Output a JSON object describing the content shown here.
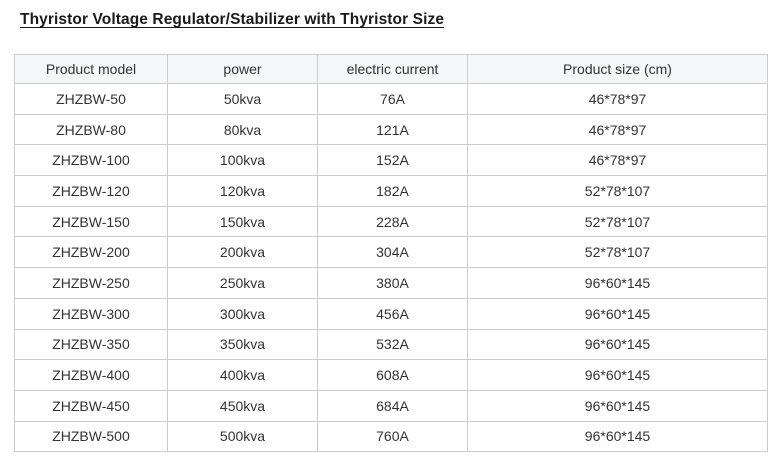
{
  "page_title": "Thyristor Voltage Regulator/Stabilizer with Thyristor Size",
  "table": {
    "columns": [
      "Product model",
      "power",
      "electric current",
      "Product size (cm)"
    ],
    "rows": [
      [
        "ZHZBW-50",
        "50kva",
        "76A",
        "46*78*97"
      ],
      [
        "ZHZBW-80",
        "80kva",
        "121A",
        "46*78*97"
      ],
      [
        "ZHZBW-100",
        "100kva",
        "152A",
        "46*78*97"
      ],
      [
        "ZHZBW-120",
        "120kva",
        "182A",
        "52*78*107"
      ],
      [
        "ZHZBW-150",
        "150kva",
        "228A",
        "52*78*107"
      ],
      [
        "ZHZBW-200",
        "200kva",
        "304A",
        "52*78*107"
      ],
      [
        "ZHZBW-250",
        "250kva",
        "380A",
        "96*60*145"
      ],
      [
        "ZHZBW-300",
        "300kva",
        "456A",
        "96*60*145"
      ],
      [
        "ZHZBW-350",
        "350kva",
        "532A",
        "96*60*145"
      ],
      [
        "ZHZBW-400",
        "400kva",
        "608A",
        "96*60*145"
      ],
      [
        "ZHZBW-450",
        "450kva",
        "684A",
        "96*60*145"
      ],
      [
        "ZHZBW-500",
        "500kva",
        "760A",
        "96*60*145"
      ]
    ]
  },
  "colors": {
    "header_bg": "#f5f6f7",
    "border": "#cccccc",
    "text": "#333333",
    "title_text": "#1a1a1a",
    "page_bg": "#ffffff"
  }
}
